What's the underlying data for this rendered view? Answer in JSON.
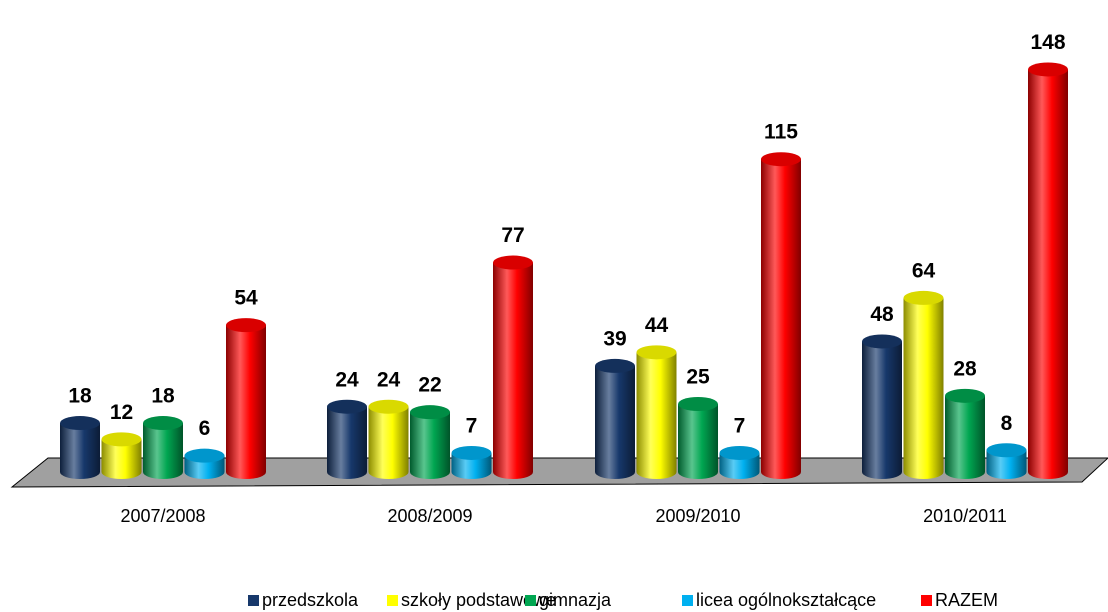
{
  "chart_data": {
    "type": "bar3d",
    "categories": [
      "2007/2008",
      "2008/2009",
      "2009/2010",
      "2010/2011"
    ],
    "series": [
      {
        "name": "przedszkola",
        "color": "#17386b",
        "values": [
          18,
          24,
          39,
          48
        ]
      },
      {
        "name": "szkoły podstawowe",
        "color": "#ffff00",
        "values": [
          12,
          24,
          44,
          64
        ]
      },
      {
        "name": "gimnazja",
        "color": "#00a651",
        "values": [
          18,
          22,
          25,
          28
        ]
      },
      {
        "name": "licea ogólnokształcące",
        "color": "#00b0f0",
        "values": [
          6,
          7,
          7,
          8
        ]
      },
      {
        "name": "RAZEM",
        "color": "#ff0000",
        "values": [
          54,
          77,
          115,
          148
        ]
      }
    ]
  }
}
